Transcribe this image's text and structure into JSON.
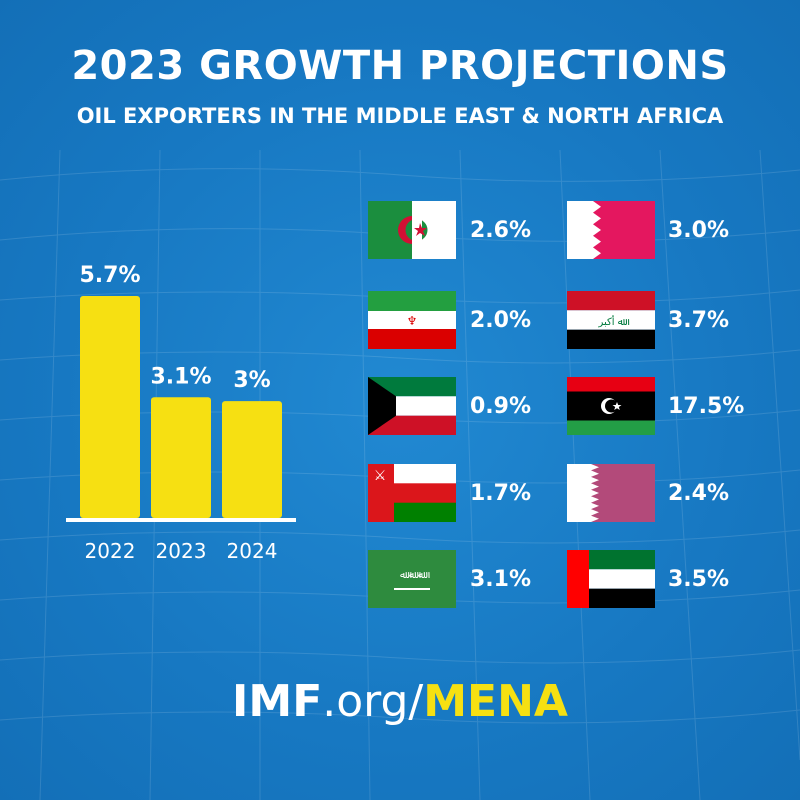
{
  "header": {
    "title": "2023 GROWTH PROJECTIONS",
    "subtitle": "OIL EXPORTERS IN THE MIDDLE EAST & NORTH AFRICA"
  },
  "colors": {
    "background": "#1a7dc7",
    "bar": "#f6e012",
    "accent": "#f6e012"
  },
  "chart_data": {
    "type": "bar",
    "title": "",
    "xlabel": "",
    "ylabel": "",
    "categories": [
      "2022",
      "2023",
      "2024"
    ],
    "values": [
      5.7,
      3.1,
      3.0
    ],
    "value_labels": [
      "5.7%",
      "3.1%",
      "3%"
    ],
    "ylim": [
      0,
      6
    ],
    "grid": false
  },
  "countries": [
    {
      "flag": "algeria-flag-icon",
      "rate": "2.6%"
    },
    {
      "flag": "iran-flag-icon",
      "rate": "2.0%"
    },
    {
      "flag": "kuwait-flag-icon",
      "rate": "0.9%"
    },
    {
      "flag": "oman-flag-icon",
      "rate": "1.7%"
    },
    {
      "flag": "saudi-arabia-flag-icon",
      "rate": "3.1%"
    },
    {
      "flag": "bahrain-flag-icon",
      "rate": "3.0%"
    },
    {
      "flag": "iraq-flag-icon",
      "rate": "3.7%"
    },
    {
      "flag": "libya-flag-icon",
      "rate": "17.5%"
    },
    {
      "flag": "qatar-flag-icon",
      "rate": "2.4%"
    },
    {
      "flag": "uae-flag-icon",
      "rate": "3.5%"
    }
  ],
  "footer": {
    "imf": "IMF",
    "org": ".org/",
    "mena": "MENA"
  }
}
